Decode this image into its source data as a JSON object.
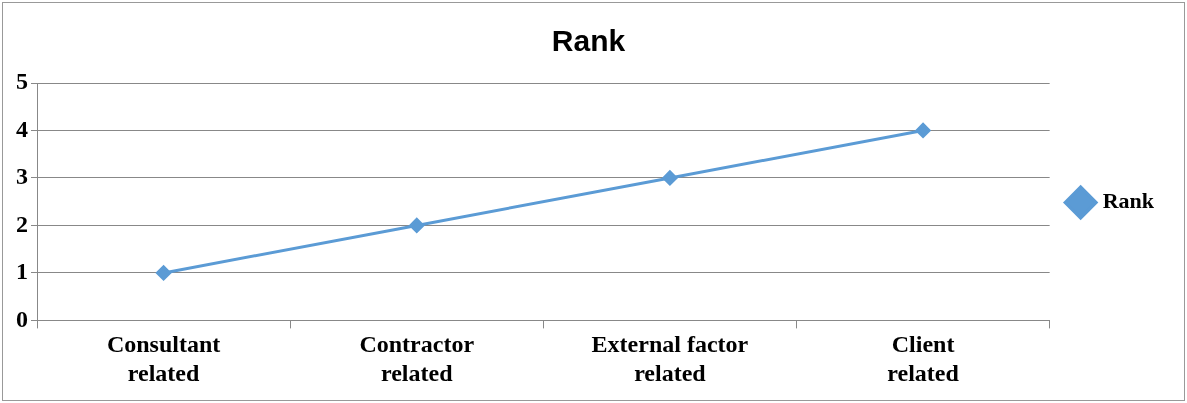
{
  "chart_data": {
    "type": "line",
    "title": "Rank",
    "categories": [
      "Consultant related",
      "Contractor related",
      "External factor related",
      "Client related"
    ],
    "series": [
      {
        "name": "Rank",
        "color": "#5b9bd5",
        "values": [
          1,
          2,
          3,
          4
        ]
      }
    ],
    "ylim": [
      0,
      5
    ],
    "yticks": [
      0,
      1,
      2,
      3,
      4,
      5
    ],
    "grid": "y",
    "legend": "right",
    "marker": "diamond",
    "line_style": "solid"
  }
}
